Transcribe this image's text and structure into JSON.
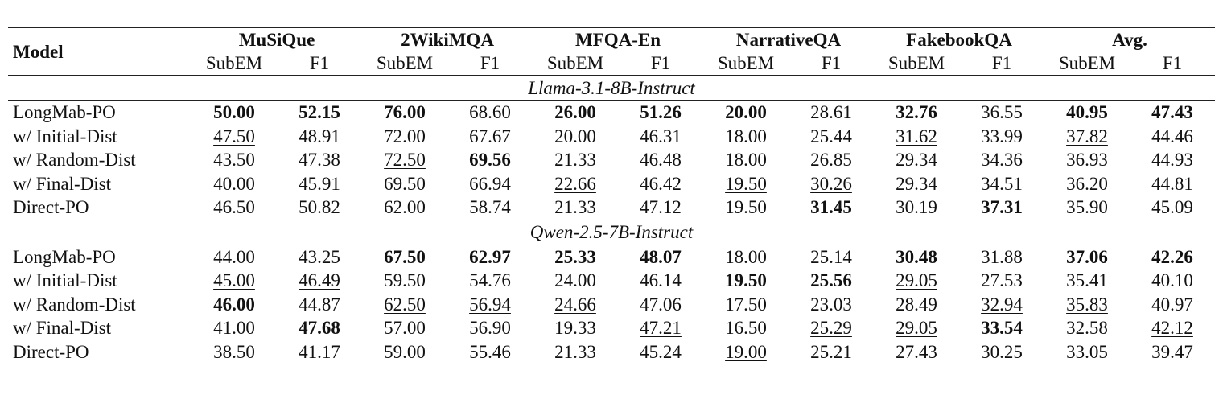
{
  "header": {
    "model": "Model",
    "groups": [
      "MuSiQue",
      "2WikiMQA",
      "MFQA-En",
      "NarrativeQA",
      "FakebookQA",
      "Avg."
    ],
    "subheaders": [
      "SubEM",
      "F1",
      "SubEM",
      "F1",
      "SubEM",
      "F1",
      "SubEM",
      "F1",
      "SubEM",
      "F1",
      "SubEM",
      "F1"
    ]
  },
  "sections": [
    {
      "title": "Llama-3.1-8B-Instruct",
      "rows": [
        {
          "model": "LongMab-PO",
          "values": [
            "50.00",
            "52.15",
            "76.00",
            "68.60",
            "26.00",
            "51.26",
            "20.00",
            "28.61",
            "32.76",
            "36.55",
            "40.95",
            "47.43"
          ],
          "bold": [
            0,
            1,
            2,
            4,
            5,
            6,
            8,
            10,
            11
          ],
          "underline": [
            3,
            9
          ]
        },
        {
          "model": "w/ Initial-Dist",
          "values": [
            "47.50",
            "48.91",
            "72.00",
            "67.67",
            "20.00",
            "46.31",
            "18.00",
            "25.44",
            "31.62",
            "33.99",
            "37.82",
            "44.46"
          ],
          "bold": [],
          "underline": [
            0,
            8,
            10
          ]
        },
        {
          "model": "w/ Random-Dist",
          "values": [
            "43.50",
            "47.38",
            "72.50",
            "69.56",
            "21.33",
            "46.48",
            "18.00",
            "26.85",
            "29.34",
            "34.36",
            "36.93",
            "44.93"
          ],
          "bold": [
            3
          ],
          "underline": [
            2
          ]
        },
        {
          "model": "w/ Final-Dist",
          "values": [
            "40.00",
            "45.91",
            "69.50",
            "66.94",
            "22.66",
            "46.42",
            "19.50",
            "30.26",
            "29.34",
            "34.51",
            "36.20",
            "44.81"
          ],
          "bold": [],
          "underline": [
            4,
            6,
            7
          ]
        },
        {
          "model": "Direct-PO",
          "values": [
            "46.50",
            "50.82",
            "62.00",
            "58.74",
            "21.33",
            "47.12",
            "19.50",
            "31.45",
            "30.19",
            "37.31",
            "35.90",
            "45.09"
          ],
          "bold": [
            7,
            9
          ],
          "underline": [
            1,
            5,
            6,
            11
          ]
        }
      ]
    },
    {
      "title": "Qwen-2.5-7B-Instruct",
      "rows": [
        {
          "model": "LongMab-PO",
          "values": [
            "44.00",
            "43.25",
            "67.50",
            "62.97",
            "25.33",
            "48.07",
            "18.00",
            "25.14",
            "30.48",
            "31.88",
            "37.06",
            "42.26"
          ],
          "bold": [
            2,
            3,
            4,
            5,
            8,
            10,
            11
          ],
          "underline": []
        },
        {
          "model": "w/ Initial-Dist",
          "values": [
            "45.00",
            "46.49",
            "59.50",
            "54.76",
            "24.00",
            "46.14",
            "19.50",
            "25.56",
            "29.05",
            "27.53",
            "35.41",
            "40.10"
          ],
          "bold": [
            6,
            7
          ],
          "underline": [
            0,
            1,
            8
          ]
        },
        {
          "model": "w/ Random-Dist",
          "values": [
            "46.00",
            "44.87",
            "62.50",
            "56.94",
            "24.66",
            "47.06",
            "17.50",
            "23.03",
            "28.49",
            "32.94",
            "35.83",
            "40.97"
          ],
          "bold": [
            0
          ],
          "underline": [
            2,
            3,
            4,
            9,
            10
          ]
        },
        {
          "model": "w/ Final-Dist",
          "values": [
            "41.00",
            "47.68",
            "57.00",
            "56.90",
            "19.33",
            "47.21",
            "16.50",
            "25.29",
            "29.05",
            "33.54",
            "32.58",
            "42.12"
          ],
          "bold": [
            1,
            9
          ],
          "underline": [
            5,
            7,
            8,
            11
          ]
        },
        {
          "model": "Direct-PO",
          "values": [
            "38.50",
            "41.17",
            "59.00",
            "55.46",
            "21.33",
            "45.24",
            "19.00",
            "25.21",
            "27.43",
            "30.25",
            "33.05",
            "39.47"
          ],
          "bold": [],
          "underline": [
            6
          ]
        }
      ]
    }
  ]
}
